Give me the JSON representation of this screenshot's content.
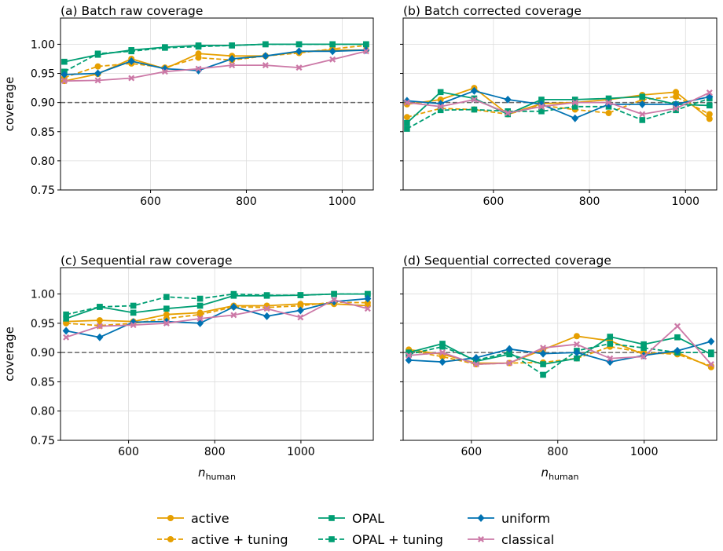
{
  "chart_data": [
    {
      "type": "line",
      "title": "(a) Batch raw coverage",
      "xlabel": "",
      "ylabel": "coverage",
      "xlim": [
        412,
        1065
      ],
      "ylim": [
        0.75,
        1.045
      ],
      "xticks": [
        400,
        600,
        800,
        1000
      ],
      "yticks": [
        0.75,
        0.8,
        0.85,
        0.9,
        0.95,
        1.0
      ],
      "ytick_labels": [
        "0.75",
        "0.80",
        "0.85",
        "0.90",
        "0.95",
        "1.00"
      ],
      "reference_line": 0.9,
      "x": [
        420,
        490,
        560,
        630,
        700,
        770,
        840,
        910,
        980,
        1050
      ],
      "series": [
        {
          "name": "active",
          "values": [
            0.937,
            0.949,
            0.975,
            0.958,
            0.984,
            0.98,
            0.98,
            0.987,
            0.99,
            0.99
          ]
        },
        {
          "name": "active + tuning",
          "values": [
            0.943,
            0.962,
            0.967,
            0.96,
            0.977,
            0.973,
            0.98,
            0.985,
            0.992,
            0.998
          ]
        },
        {
          "name": "OPAL",
          "values": [
            0.97,
            0.982,
            0.99,
            0.995,
            0.998,
            0.998,
            1.0,
            1.0,
            1.0,
            1.0
          ]
        },
        {
          "name": "OPAL + tuning",
          "values": [
            0.953,
            0.984,
            0.988,
            0.994,
            0.996,
            0.998,
            1.0,
            1.0,
            1.0,
            1.0
          ]
        },
        {
          "name": "uniform",
          "values": [
            0.948,
            0.95,
            0.971,
            0.958,
            0.955,
            0.975,
            0.98,
            0.988,
            0.988,
            0.99
          ]
        },
        {
          "name": "classical",
          "values": [
            0.937,
            0.938,
            0.942,
            0.953,
            0.958,
            0.964,
            0.964,
            0.96,
            0.974,
            0.988
          ]
        }
      ]
    },
    {
      "type": "line",
      "title": "(b) Batch corrected coverage",
      "xlabel": "",
      "ylabel": "",
      "xlim": [
        412,
        1065
      ],
      "ylim": [
        0.75,
        1.045
      ],
      "xticks": [
        400,
        600,
        800,
        1000
      ],
      "yticks": [
        0.75,
        0.8,
        0.85,
        0.9,
        0.95,
        1.0
      ],
      "ytick_labels": [
        "",
        "",
        "",
        "",
        "",
        ""
      ],
      "reference_line": 0.9,
      "x": [
        420,
        490,
        560,
        630,
        700,
        770,
        840,
        910,
        980,
        1050
      ],
      "series": [
        {
          "name": "active",
          "values": [
            0.897,
            0.905,
            0.925,
            0.88,
            0.898,
            0.9,
            0.905,
            0.913,
            0.918,
            0.872
          ]
        },
        {
          "name": "active + tuning",
          "values": [
            0.875,
            0.89,
            0.888,
            0.88,
            0.895,
            0.888,
            0.882,
            0.905,
            0.91,
            0.88
          ]
        },
        {
          "name": "OPAL",
          "values": [
            0.865,
            0.918,
            0.907,
            0.88,
            0.905,
            0.905,
            0.907,
            0.91,
            0.897,
            0.895
          ]
        },
        {
          "name": "OPAL + tuning",
          "values": [
            0.855,
            0.887,
            0.888,
            0.885,
            0.885,
            0.893,
            0.893,
            0.87,
            0.887,
            0.907
          ]
        },
        {
          "name": "uniform",
          "values": [
            0.903,
            0.898,
            0.92,
            0.905,
            0.897,
            0.873,
            0.897,
            0.897,
            0.897,
            0.91
          ]
        },
        {
          "name": "classical",
          "values": [
            0.9,
            0.893,
            0.905,
            0.882,
            0.893,
            0.9,
            0.9,
            0.88,
            0.89,
            0.917
          ]
        }
      ]
    },
    {
      "type": "line",
      "title": "(c) Sequential raw coverage",
      "xlabel": "n_human",
      "ylabel": "coverage",
      "xlim": [
        442,
        1168
      ],
      "ylim": [
        0.75,
        1.045
      ],
      "xticks": [
        600,
        800,
        1000
      ],
      "yticks": [
        0.75,
        0.8,
        0.85,
        0.9,
        0.95,
        1.0
      ],
      "ytick_labels": [
        "0.75",
        "0.80",
        "0.85",
        "0.90",
        "0.95",
        "1.00"
      ],
      "reference_line": 0.9,
      "x": [
        455,
        533,
        611,
        688,
        766,
        844,
        921,
        999,
        1077,
        1155
      ],
      "series": [
        {
          "name": "active",
          "values": [
            0.953,
            0.955,
            0.953,
            0.965,
            0.968,
            0.98,
            0.98,
            0.983,
            0.983,
            0.98
          ]
        },
        {
          "name": "active + tuning",
          "values": [
            0.95,
            0.946,
            0.95,
            0.958,
            0.965,
            0.978,
            0.977,
            0.98,
            0.986,
            0.985
          ]
        },
        {
          "name": "OPAL",
          "values": [
            0.958,
            0.978,
            0.968,
            0.975,
            0.98,
            0.997,
            0.997,
            0.998,
            1.0,
            1.0
          ]
        },
        {
          "name": "OPAL + tuning",
          "values": [
            0.965,
            0.978,
            0.98,
            0.995,
            0.992,
            1.0,
            0.998,
            0.998,
            1.0,
            1.0
          ]
        },
        {
          "name": "uniform",
          "values": [
            0.937,
            0.926,
            0.952,
            0.953,
            0.95,
            0.978,
            0.962,
            0.972,
            0.987,
            0.992
          ]
        },
        {
          "name": "classical",
          "values": [
            0.926,
            0.945,
            0.947,
            0.95,
            0.958,
            0.964,
            0.975,
            0.96,
            0.99,
            0.975
          ]
        }
      ]
    },
    {
      "type": "line",
      "title": "(d) Sequential corrected coverage",
      "xlabel": "n_human",
      "ylabel": "",
      "xlim": [
        442,
        1168
      ],
      "ylim": [
        0.75,
        1.045
      ],
      "xticks": [
        600,
        800,
        1000
      ],
      "yticks": [
        0.75,
        0.8,
        0.85,
        0.9,
        0.95,
        1.0
      ],
      "ytick_labels": [
        "",
        "",
        "",
        "",
        "",
        ""
      ],
      "reference_line": 0.9,
      "x": [
        455,
        533,
        611,
        688,
        766,
        844,
        921,
        999,
        1077,
        1155
      ],
      "series": [
        {
          "name": "active",
          "values": [
            0.905,
            0.897,
            0.882,
            0.882,
            0.905,
            0.928,
            0.92,
            0.897,
            0.9,
            0.875
          ]
        },
        {
          "name": "active + tuning",
          "values": [
            0.903,
            0.893,
            0.88,
            0.882,
            0.883,
            0.89,
            0.91,
            0.9,
            0.897,
            0.877
          ]
        },
        {
          "name": "OPAL",
          "values": [
            0.9,
            0.915,
            0.885,
            0.897,
            0.88,
            0.89,
            0.927,
            0.914,
            0.926,
            0.897
          ]
        },
        {
          "name": "OPAL + tuning",
          "values": [
            0.897,
            0.91,
            0.887,
            0.9,
            0.862,
            0.903,
            0.915,
            0.908,
            0.9,
            0.9
          ]
        },
        {
          "name": "uniform",
          "values": [
            0.887,
            0.884,
            0.891,
            0.906,
            0.898,
            0.9,
            0.884,
            0.895,
            0.903,
            0.919
          ]
        },
        {
          "name": "classical",
          "values": [
            0.895,
            0.9,
            0.88,
            0.882,
            0.908,
            0.914,
            0.89,
            0.893,
            0.945,
            0.88
          ]
        }
      ]
    }
  ],
  "legend": {
    "placement": "bottom-center",
    "entries": [
      {
        "name": "active",
        "color": "#E69F00",
        "dash": "solid",
        "marker": "circle"
      },
      {
        "name": "active + tuning",
        "color": "#E69F00",
        "dash": "dashed",
        "marker": "circle"
      },
      {
        "name": "OPAL",
        "color": "#009E73",
        "dash": "solid",
        "marker": "square"
      },
      {
        "name": "OPAL + tuning",
        "color": "#009E73",
        "dash": "dashed",
        "marker": "square"
      },
      {
        "name": "uniform",
        "color": "#0072B2",
        "dash": "solid",
        "marker": "diamond"
      },
      {
        "name": "classical",
        "color": "#CC79A7",
        "dash": "solid",
        "marker": "x"
      }
    ]
  },
  "colors": {
    "active": "#E69F00",
    "OPAL": "#009E73",
    "uniform": "#0072B2",
    "classical": "#CC79A7",
    "reference_line": "#666666",
    "grid": "#dddddd"
  }
}
